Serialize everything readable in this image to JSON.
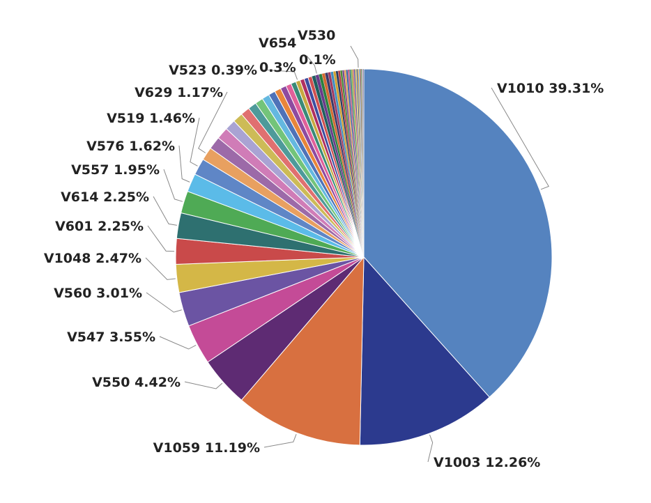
{
  "chart_data": {
    "type": "pie",
    "title": "",
    "grid": false,
    "legend": "none",
    "labels_shown": [
      "V1010 39.31%",
      "V1003 12.26%",
      "V1059 11.19%",
      "V550 4.42%",
      "V547 3.55%",
      "V560 3.01%",
      "V1048 2.47%",
      "V601 2.25%",
      "V614 2.25%",
      "V557 1.95%",
      "V576 1.62%",
      "V519 1.46%",
      "V629 1.17%",
      "V523 0.39%",
      "V654",
      "0.3%",
      "V530",
      "0.1%"
    ],
    "slices": [
      {
        "name": "V1010",
        "value": 39.31,
        "color": "#5583bf"
      },
      {
        "name": "V1003",
        "value": 12.26,
        "color": "#2c3a8e"
      },
      {
        "name": "V1059",
        "value": 11.19,
        "color": "#d87040"
      },
      {
        "name": "V550",
        "value": 4.42,
        "color": "#5e2b73"
      },
      {
        "name": "V547",
        "value": 3.55,
        "color": "#c44b97"
      },
      {
        "name": "V560",
        "value": 3.01,
        "color": "#6b54a3"
      },
      {
        "name": "V1048",
        "value": 2.47,
        "color": "#d4b747"
      },
      {
        "name": "V601",
        "value": 2.25,
        "color": "#c94a4a"
      },
      {
        "name": "V614",
        "value": 2.25,
        "color": "#2e7070"
      },
      {
        "name": "V557",
        "value": 1.95,
        "color": "#4faa55"
      },
      {
        "name": "V576",
        "value": 1.62,
        "color": "#5bbbe8"
      },
      {
        "name": "V519",
        "value": 1.46,
        "color": "#5f86c6"
      },
      {
        "name": "V629",
        "value": 1.17,
        "color": "#e8a060"
      },
      {
        "value": 1.12,
        "color": "#9c6aa8"
      },
      {
        "value": 1.05,
        "color": "#d07cb7"
      },
      {
        "value": 0.95,
        "color": "#a9a3d3"
      },
      {
        "value": 0.88,
        "color": "#cdbb57"
      },
      {
        "value": 0.8,
        "color": "#e07070"
      },
      {
        "value": 0.75,
        "color": "#4e9a9a"
      },
      {
        "value": 0.7,
        "color": "#73c47a"
      },
      {
        "value": 0.65,
        "color": "#64b8e0"
      },
      {
        "value": 0.6,
        "color": "#4f72b8"
      },
      {
        "value": 0.56,
        "color": "#e8853a"
      },
      {
        "value": 0.52,
        "color": "#8e4aa0"
      },
      {
        "value": 0.48,
        "color": "#e0609a"
      },
      {
        "value": 0.44,
        "color": "#3a8a78"
      },
      {
        "name": "V523",
        "value": 0.39,
        "color": "#c7a940"
      },
      {
        "value": 0.38,
        "color": "#b03060"
      },
      {
        "value": 0.36,
        "color": "#3c4da0"
      },
      {
        "value": 0.34,
        "color": "#d05050"
      },
      {
        "value": 0.32,
        "color": "#1f5f5f"
      },
      {
        "name": "V654",
        "value": 0.3,
        "color": "#6a3a8a"
      },
      {
        "value": 0.28,
        "color": "#2a8040"
      },
      {
        "value": 0.27,
        "color": "#d46a30"
      },
      {
        "value": 0.26,
        "color": "#3a3a6a"
      },
      {
        "value": 0.24,
        "color": "#a03a60"
      },
      {
        "value": 0.23,
        "color": "#3e8ec0"
      },
      {
        "value": 0.22,
        "color": "#d0a030"
      },
      {
        "value": 0.2,
        "color": "#283860"
      },
      {
        "value": 0.19,
        "color": "#b64040"
      },
      {
        "value": 0.18,
        "color": "#4a8a3a"
      },
      {
        "value": 0.17,
        "color": "#7a4a90"
      },
      {
        "value": 0.16,
        "color": "#e0a050"
      },
      {
        "value": 0.15,
        "color": "#2f5fa0"
      },
      {
        "value": 0.14,
        "color": "#c05080"
      },
      {
        "value": 0.14,
        "color": "#3a7a7a"
      },
      {
        "value": 0.13,
        "color": "#8ab040"
      },
      {
        "value": 0.12,
        "color": "#d07060"
      },
      {
        "value": 0.12,
        "color": "#5a5aa0"
      },
      {
        "value": 0.11,
        "color": "#e0c050"
      },
      {
        "value": 0.11,
        "color": "#406080"
      },
      {
        "name": "V530",
        "value": 0.1,
        "color": "#d4a046"
      },
      {
        "value": 0.1,
        "color": "#6a9ad0"
      },
      {
        "value": 0.09,
        "color": "#9a5a3a"
      },
      {
        "value": 0.09,
        "color": "#5a8a5a"
      },
      {
        "value": 0.08,
        "color": "#c090c0"
      },
      {
        "value": 0.07,
        "color": "#708090"
      }
    ]
  }
}
